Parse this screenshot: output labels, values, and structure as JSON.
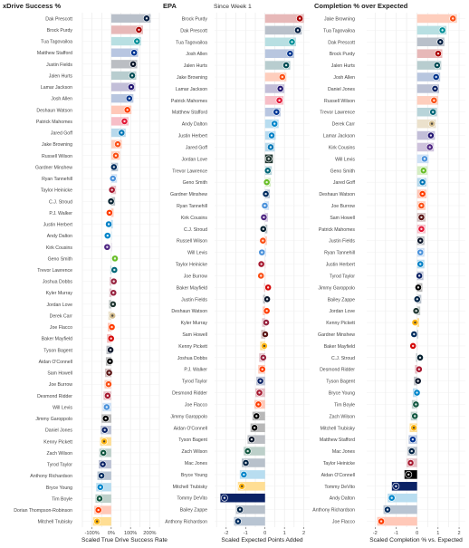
{
  "panels": [
    {
      "title": "xDrive Success %",
      "subtitle": "",
      "xlabel": "Scaled True Drive Success Rate",
      "ticks": [
        "-100%",
        "0%",
        "100%",
        "200%"
      ]
    },
    {
      "title": "EPA",
      "subtitle": "Since Week 1",
      "xlabel": "Scaled Expected Points Added",
      "ticks": [
        "-2",
        "-1",
        "0",
        "1",
        "2"
      ]
    },
    {
      "title": "Completion % over Expected",
      "subtitle": "",
      "xlabel": "Scaled Completion % vs. Expected",
      "ticks": [
        "-2",
        "-1",
        "0",
        "1",
        "2"
      ]
    }
  ],
  "colors": {
    "grid": "#e8e8e8",
    "axis": "#333333",
    "team": {
      "SF": "#AA0000",
      "DAL": "#041E42",
      "MIA": "#008E97",
      "LA": "#003594",
      "CHI": "#0B162A",
      "PHI": "#004C54",
      "BAL": "#241773",
      "BUF": "#00338D",
      "CLE": "#FF3C00",
      "KC": "#E31837",
      "DET": "#0076B6",
      "CIN": "#FB4F14",
      "SEA": "#69BE28",
      "IND": "#002C5F",
      "TEN": "#4B92DB",
      "HOU": "#03202F",
      "LAC": "#0080C6",
      "ATL": "#A71930",
      "MIN": "#4F2683",
      "JAX": "#006778",
      "NYG": "#0B2265",
      "NO": "#D3BC8D",
      "ARI": "#97233F",
      "GB": "#203731",
      "TB": "#D50A0A",
      "LV": "#000000",
      "WAS": "#5A1414",
      "NE": "#002244",
      "DEN": "#FB4F14",
      "PIT": "#FFB612",
      "NYJ": "#125740",
      "CAR": "#0085CA"
    }
  },
  "chart_data": [
    {
      "type": "bar",
      "title": "xDrive Success %",
      "xlabel": "Scaled True Drive Success Rate",
      "xlim": [
        -150,
        250
      ],
      "categories": [
        "Dak Prescott",
        "Brock Purdy",
        "Tua Tagovailoa",
        "Matthew Stafford",
        "Justin Fields",
        "Jalen Hurts",
        "Lamar Jackson",
        "Josh Allen",
        "Deshaun Watson",
        "Patrick Mahomes",
        "Jared Goff",
        "Jake Browning",
        "Russell Wilson",
        "Gardner Minshew",
        "Ryan Tannehill",
        "Taylor Heinicke",
        "C.J. Stroud",
        "P.J. Walker",
        "Justin Herbert",
        "Andy Dalton",
        "Kirk Cousins",
        "Geno Smith",
        "Trevor Lawrence",
        "Joshua Dobbs",
        "Kyler Murray",
        "Jordan Love",
        "Derek Carr",
        "Joe Flacco",
        "Baker Mayfield",
        "Tyson Bagent",
        "Aidan O'Connell",
        "Sam Howell",
        "Joe Burrow",
        "Desmond Ridder",
        "Will Levis",
        "Jimmy Garoppolo",
        "Daniel Jones",
        "Kenny Pickett",
        "Zach Wilson",
        "Tyrod Taylor",
        "Anthony Richardson",
        "Bryce Young",
        "Tim Boyle",
        "Dorian Thompson-Robinson",
        "Mitchell Trubisky"
      ],
      "teams": [
        "DAL",
        "SF",
        "MIA",
        "LA",
        "CHI",
        "PHI",
        "BAL",
        "BUF",
        "CLE",
        "KC",
        "DET",
        "CIN",
        "DEN",
        "IND",
        "TEN",
        "ATL",
        "HOU",
        "CLE",
        "LAC",
        "CAR",
        "MIN",
        "SEA",
        "JAX",
        "ARI",
        "ARI",
        "GB",
        "NO",
        "CLE",
        "TB",
        "CHI",
        "LV",
        "WAS",
        "CIN",
        "ATL",
        "TEN",
        "LV",
        "NYG",
        "PIT",
        "NYJ",
        "NYG",
        "IND",
        "CAR",
        "NYJ",
        "CLE",
        "PIT"
      ],
      "values": [
        205,
        165,
        155,
        140,
        135,
        130,
        125,
        115,
        105,
        90,
        75,
        55,
        45,
        35,
        30,
        25,
        20,
        12,
        8,
        2,
        0,
        -2,
        -5,
        -8,
        -10,
        -12,
        -15,
        -18,
        -22,
        -25,
        -28,
        -32,
        -35,
        -40,
        -45,
        -50,
        -55,
        -58,
        -62,
        -65,
        -72,
        -78,
        -82,
        -88,
        -95
      ]
    },
    {
      "type": "bar",
      "title": "EPA",
      "subtitle": "Since Week 1",
      "xlabel": "Scaled Expected Points Added",
      "xlim": [
        -2.6,
        2.3
      ],
      "categories": [
        "Brock Purdy",
        "Dak Prescott",
        "Tua Tagovailoa",
        "Josh Allen",
        "Jalen Hurts",
        "Jake Browning",
        "Lamar Jackson",
        "Patrick Mahomes",
        "Matthew Stafford",
        "Andy Dalton",
        "Justin Herbert",
        "Jared Goff",
        "Jordan Love",
        "Trevor Lawrence",
        "Geno Smith",
        "Gardner Minshew",
        "Ryan Tannehill",
        "Kirk Cousins",
        "C.J. Stroud",
        "Russell Wilson",
        "Will Levis",
        "Taylor Heinicke",
        "Joe Burrow",
        "Baker Mayfield",
        "Justin Fields",
        "Deshaun Watson",
        "Kyler Murray",
        "Sam Howell",
        "Kenny Pickett",
        "Joshua Dobbs",
        "P.J. Walker",
        "Tyrod Taylor",
        "Desmond Ridder",
        "Joe Flacco",
        "Jimmy Garoppolo",
        "Aidan O'Connell",
        "Tyson Bagent",
        "Zach Wilson",
        "Mac Jones",
        "Bryce Young",
        "Mitchell Trubisky",
        "Tommy DeVito",
        "Bailey Zappe",
        "Anthony Richardson"
      ],
      "teams": [
        "SF",
        "DAL",
        "MIA",
        "BUF",
        "PHI",
        "CIN",
        "BAL",
        "KC",
        "LA",
        "CAR",
        "LAC",
        "DET",
        "GB",
        "JAX",
        "SEA",
        "IND",
        "TEN",
        "MIN",
        "HOU",
        "DEN",
        "TEN",
        "ATL",
        "CIN",
        "TB",
        "CHI",
        "CLE",
        "ARI",
        "WAS",
        "PIT",
        "ARI",
        "CLE",
        "NYG",
        "ATL",
        "CLE",
        "LV",
        "LV",
        "CHI",
        "NYJ",
        "NE",
        "CAR",
        "PIT",
        "NYG",
        "NE",
        "IND"
      ],
      "values": [
        2.0,
        1.9,
        1.6,
        1.5,
        1.3,
        1.1,
        1.0,
        0.95,
        0.8,
        0.7,
        0.55,
        0.5,
        0.4,
        0.35,
        0.3,
        0.25,
        0.2,
        0.15,
        0.12,
        0.1,
        0.05,
        0.02,
        0.0,
        -0.05,
        -0.1,
        -0.12,
        -0.15,
        -0.2,
        -0.25,
        -0.3,
        -0.35,
        -0.45,
        -0.5,
        -0.55,
        -0.65,
        -0.75,
        -0.9,
        -1.1,
        -1.2,
        -1.3,
        -1.4,
        -2.3,
        -1.5,
        -1.6
      ]
    },
    {
      "type": "bar",
      "title": "Completion % over Expected",
      "xlabel": "Scaled Completion % vs. Expected",
      "xlim": [
        -2.4,
        2.3
      ],
      "categories": [
        "Jake Browning",
        "Tua Tagovailoa",
        "Dak Prescott",
        "Brock Purdy",
        "Jalen Hurts",
        "Josh Allen",
        "Daniel Jones",
        "Russell Wilson",
        "Trevor Lawrence",
        "Derek Carr",
        "Lamar Jackson",
        "Kirk Cousins",
        "Will Levis",
        "Geno Smith",
        "Jared Goff",
        "Deshaun Watson",
        "Joe Burrow",
        "Sam Howell",
        "Patrick Mahomes",
        "Justin Fields",
        "Ryan Tannehill",
        "Justin Herbert",
        "Tyrod Taylor",
        "Jimmy Garoppolo",
        "Bailey Zappe",
        "Jordan Love",
        "Kenny Pickett",
        "Gardner Minshew",
        "Baker Mayfield",
        "C.J. Stroud",
        "Desmond Ridder",
        "Tyson Bagent",
        "Bryce Young",
        "Tim Boyle",
        "Zach Wilson",
        "Mitchell Trubisky",
        "Matthew Stafford",
        "Mac Jones",
        "Taylor Heinicke",
        "Aidan O'Connell",
        "Tommy DeVito",
        "Andy Dalton",
        "Anthony Richardson",
        "Joe Flacco"
      ],
      "teams": [
        "CIN",
        "MIA",
        "DAL",
        "SF",
        "PHI",
        "BUF",
        "NYG",
        "DEN",
        "JAX",
        "NO",
        "BAL",
        "MIN",
        "TEN",
        "SEA",
        "DET",
        "CLE",
        "CIN",
        "WAS",
        "KC",
        "CHI",
        "TEN",
        "LAC",
        "NYG",
        "LV",
        "NE",
        "GB",
        "PIT",
        "IND",
        "TB",
        "HOU",
        "ATL",
        "CHI",
        "CAR",
        "NYJ",
        "NYJ",
        "PIT",
        "LA",
        "NE",
        "ATL",
        "LV",
        "NYG",
        "CAR",
        "IND",
        "CLE"
      ],
      "values": [
        1.9,
        1.4,
        1.3,
        1.2,
        1.15,
        1.1,
        1.05,
        1.0,
        0.95,
        0.9,
        0.85,
        0.8,
        0.55,
        0.5,
        0.45,
        0.45,
        0.4,
        0.4,
        0.4,
        0.35,
        0.35,
        0.35,
        0.3,
        0.25,
        0.2,
        0.15,
        0.1,
        0.05,
        0.0,
        -0.05,
        -0.1,
        -0.15,
        -0.2,
        -0.25,
        -0.3,
        -0.35,
        -0.4,
        -0.45,
        -0.5,
        -0.6,
        -1.2,
        -1.4,
        -1.6,
        -1.9
      ]
    }
  ]
}
